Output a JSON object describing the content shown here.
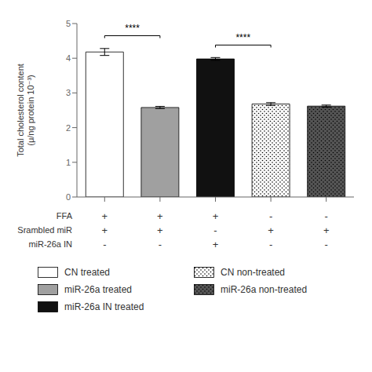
{
  "chart_data": {
    "type": "bar",
    "categories": [
      "CN treated",
      "miR-26a treated",
      "miR-26a IN treated",
      "CN non-treated",
      "miR-26a non-treated"
    ],
    "values": [
      4.18,
      2.58,
      3.98,
      2.68,
      2.62
    ],
    "errors": [
      0.1,
      0.03,
      0.04,
      0.04,
      0.03
    ],
    "colors": [
      "white",
      "#a0a0a0",
      "#111111",
      "white",
      "#555555"
    ],
    "ylim": [
      0,
      5
    ],
    "yticks": [
      0,
      1,
      2,
      3,
      4,
      5
    ],
    "ylabel": "Total cholesterol content\n(μ/ng protein 10⁻³)",
    "tick_labels": "y",
    "grid": false,
    "legend": "bottom",
    "annotations": [
      {
        "text": "****",
        "bars": [
          0,
          1
        ],
        "y": 4.65
      },
      {
        "text": "****",
        "bars": [
          2,
          3
        ],
        "y": 4.38
      }
    ],
    "table": {
      "row_labels": [
        "FFA",
        "Srambled miR",
        "miR-26a IN"
      ],
      "rows": [
        [
          "+",
          "+",
          "+",
          "-",
          "-"
        ],
        [
          "+",
          "+",
          "-",
          "+",
          "+"
        ],
        [
          "-",
          "-",
          "+",
          "-",
          "-"
        ]
      ]
    }
  }
}
